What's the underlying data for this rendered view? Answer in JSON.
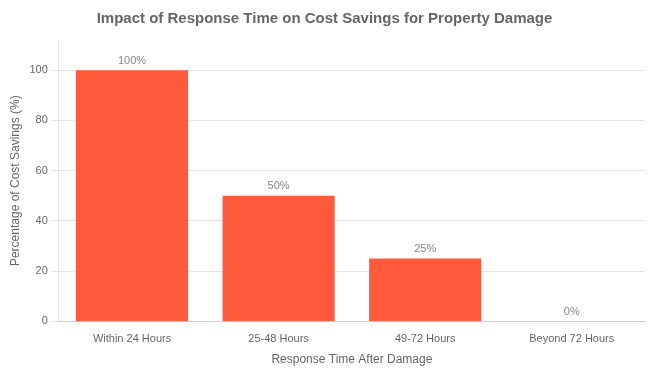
{
  "chart_data": {
    "type": "bar",
    "title": "Impact of Response Time on Cost Savings for Property Damage",
    "xlabel": "Response Time After Damage",
    "ylabel": "Percentage of Cost Savings (%)",
    "categories": [
      "Within 24 Hours",
      "25-48 Hours",
      "49-72 Hours",
      "Beyond 72 Hours"
    ],
    "values": [
      100,
      50,
      25,
      0
    ],
    "value_labels": [
      "100%",
      "50%",
      "25%",
      "0%"
    ],
    "data_labels": true,
    "color": "#FF5A3C",
    "ylim": [
      0,
      112
    ],
    "yticks": [
      0,
      20,
      40,
      60,
      80,
      100
    ],
    "grid": true
  }
}
